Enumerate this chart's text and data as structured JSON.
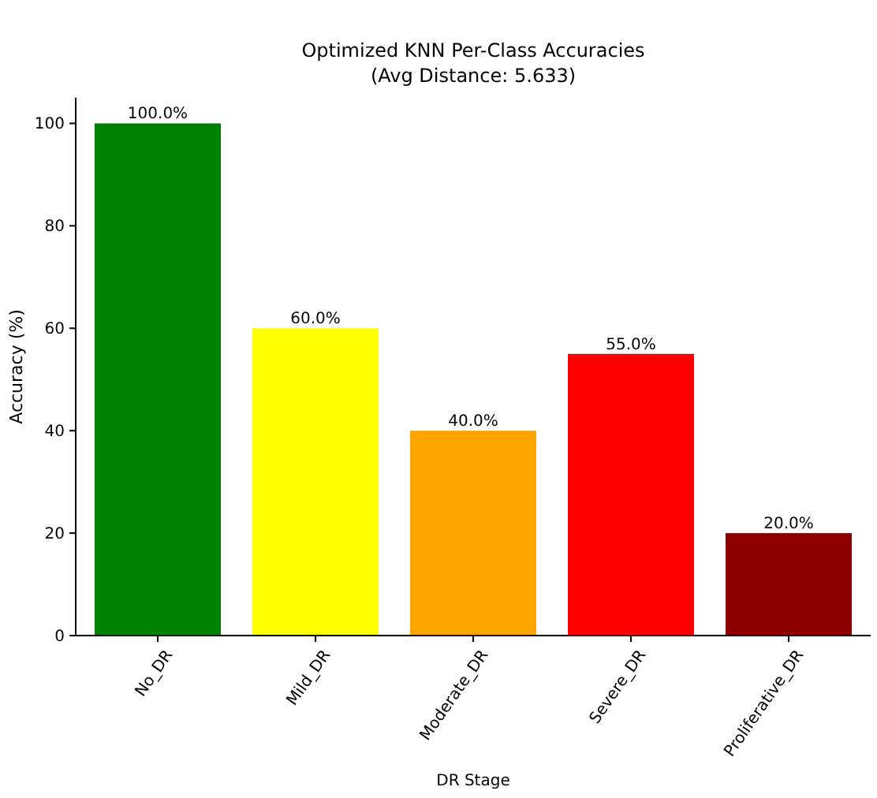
{
  "chart_data": {
    "type": "bar",
    "title": "Optimized KNN Per-Class Accuracies",
    "subtitle": "(Avg Distance: 5.633)",
    "xlabel": "DR Stage",
    "ylabel": "Accuracy (%)",
    "categories": [
      "No_DR",
      "Mild_DR",
      "Moderate_DR",
      "Severe_DR",
      "Proliferative_DR"
    ],
    "values": [
      100,
      60,
      40,
      55,
      20
    ],
    "colors": [
      "#008000",
      "#ffff00",
      "#ffa500",
      "#ff0000",
      "#8b0000"
    ],
    "value_labels": [
      "100.0%",
      "60.0%",
      "40.0%",
      "55.0%",
      "20.0%"
    ],
    "ylim": [
      0,
      105
    ],
    "yticks": [
      0,
      20,
      40,
      60,
      80,
      100
    ],
    "grid": false
  }
}
